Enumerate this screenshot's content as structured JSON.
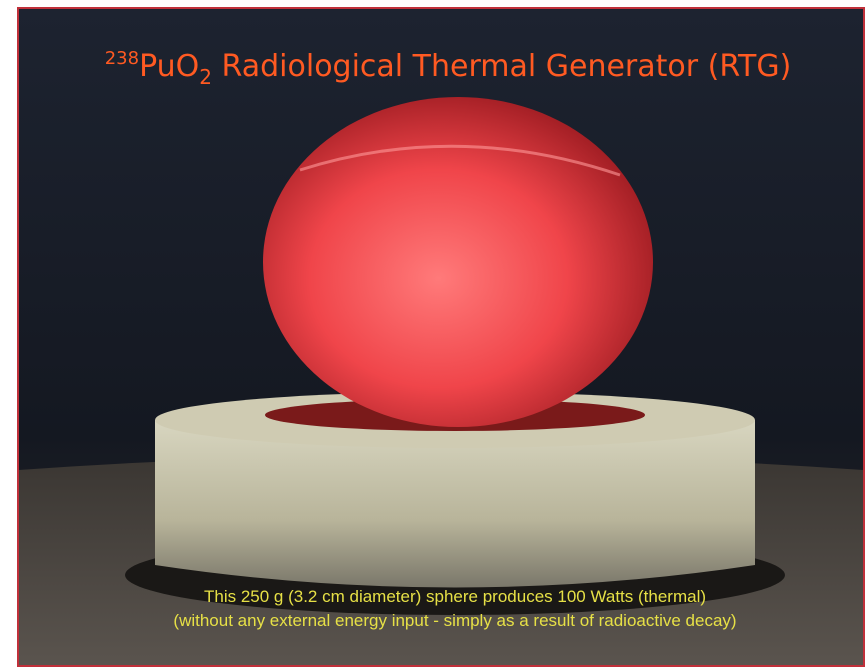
{
  "title": {
    "isotope": "238",
    "formula": "PuO",
    "subscript": "2",
    "text": " Radiological Thermal Generator (RTG)"
  },
  "caption": {
    "line1": "This 250 g (3.2 cm diameter) sphere  produces 100 Watts (thermal)",
    "line2": "(without any external energy input - simply as a result of radioactive decay)"
  }
}
